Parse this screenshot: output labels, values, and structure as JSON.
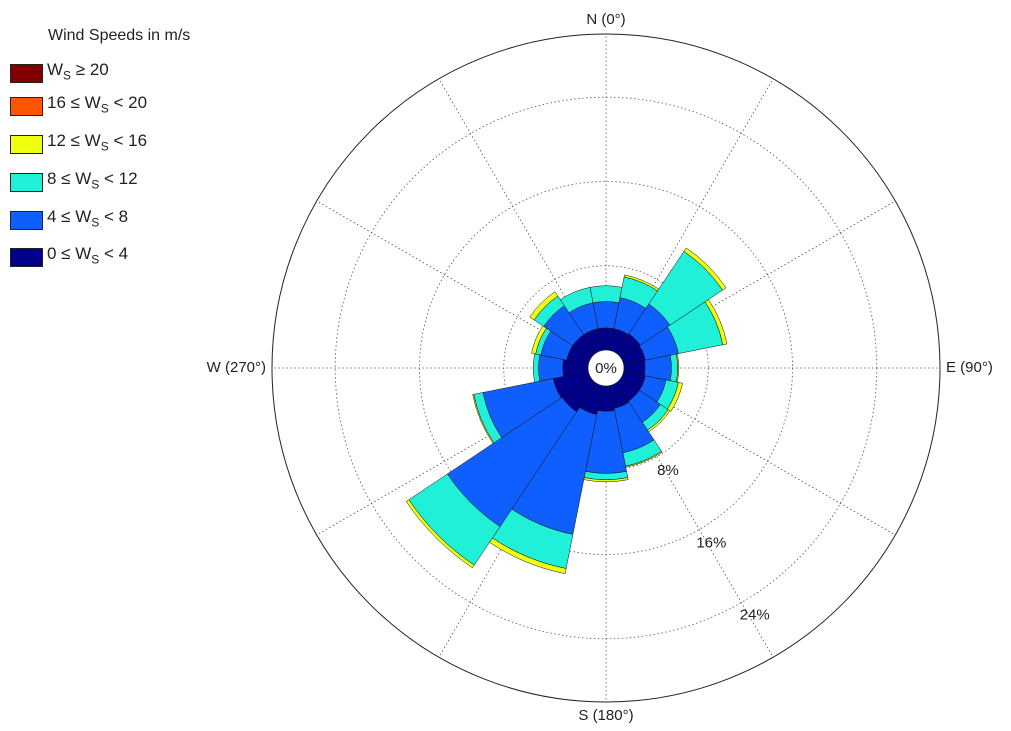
{
  "chart_data": {
    "type": "polar-stacked-bar",
    "legend": {
      "title": "Wind Speeds in m/s",
      "items": [
        {
          "pre": "W",
          "sub": "S",
          "post": " ≥ 20",
          "color": "#800000"
        },
        {
          "pre": "16 ≤ W",
          "sub": "S",
          "post": " < 20",
          "color": "#ff5500"
        },
        {
          "pre": "12 ≤ W",
          "sub": "S",
          "post": " < 16",
          "color": "#eeff10"
        },
        {
          "pre": "8 ≤ W",
          "sub": "S",
          "post": " < 12",
          "color": "#20f0d8"
        },
        {
          "pre": "4 ≤ W",
          "sub": "S",
          "post": " < 8",
          "color": "#0f5fff"
        },
        {
          "pre": "0 ≤ W",
          "sub": "S",
          "post": " < 4",
          "color": "#000088"
        }
      ]
    },
    "direction_labels": [
      "N (0°)",
      "E (90°)",
      "S (180°)",
      "W (270°)"
    ],
    "ring_labels": [
      "8%",
      "16%",
      "24%"
    ],
    "center_label": "0%",
    "r_max": 30,
    "ring_values": [
      8,
      16,
      24
    ],
    "sector_width_deg": 22.5,
    "bins": [
      "0-4",
      "4-8",
      "8-12",
      "12-16",
      "16-20",
      "20+"
    ],
    "sectors": [
      {
        "dir": 0,
        "values": [
          2.1,
          2.5,
          1.5,
          0,
          0,
          0
        ]
      },
      {
        "dir": 22.5,
        "values": [
          2.1,
          3.0,
          2.0,
          0.2,
          0,
          0
        ]
      },
      {
        "dir": 45,
        "values": [
          2.2,
          3.4,
          6.0,
          0.4,
          0,
          0
        ]
      },
      {
        "dir": 67.5,
        "values": [
          2.1,
          3.2,
          4.3,
          0.4,
          0,
          0
        ]
      },
      {
        "dir": 90,
        "values": [
          2.0,
          2.5,
          0.6,
          0.1,
          0,
          0
        ]
      },
      {
        "dir": 112.5,
        "values": [
          2.1,
          2.0,
          1.2,
          0.4,
          0,
          0
        ]
      },
      {
        "dir": 135,
        "values": [
          2.1,
          2.4,
          0.9,
          0.2,
          0,
          0
        ]
      },
      {
        "dir": 157.5,
        "values": [
          2.2,
          4.3,
          1.3,
          0.1,
          0,
          0
        ]
      },
      {
        "dir": 180,
        "values": [
          2.4,
          5.9,
          0.6,
          0.2,
          0,
          0
        ]
      },
      {
        "dir": 202.5,
        "values": [
          2.8,
          11.6,
          3.3,
          0.5,
          0,
          0
        ]
      },
      {
        "dir": 225,
        "values": [
          3.3,
          13.1,
          4.4,
          0.3,
          0,
          0
        ]
      },
      {
        "dir": 247.5,
        "values": [
          3.4,
          6.8,
          0.9,
          0.1,
          0,
          0
        ]
      },
      {
        "dir": 270,
        "values": [
          2.4,
          2.3,
          0.5,
          0,
          0,
          0
        ]
      },
      {
        "dir": 292.5,
        "values": [
          2.1,
          2.5,
          0.5,
          0.4,
          0,
          0
        ]
      },
      {
        "dir": 315,
        "values": [
          2.1,
          3.3,
          1.1,
          0.5,
          0,
          0
        ]
      },
      {
        "dir": 337.5,
        "values": [
          2.1,
          2.5,
          1.5,
          0,
          0,
          0
        ]
      }
    ]
  }
}
